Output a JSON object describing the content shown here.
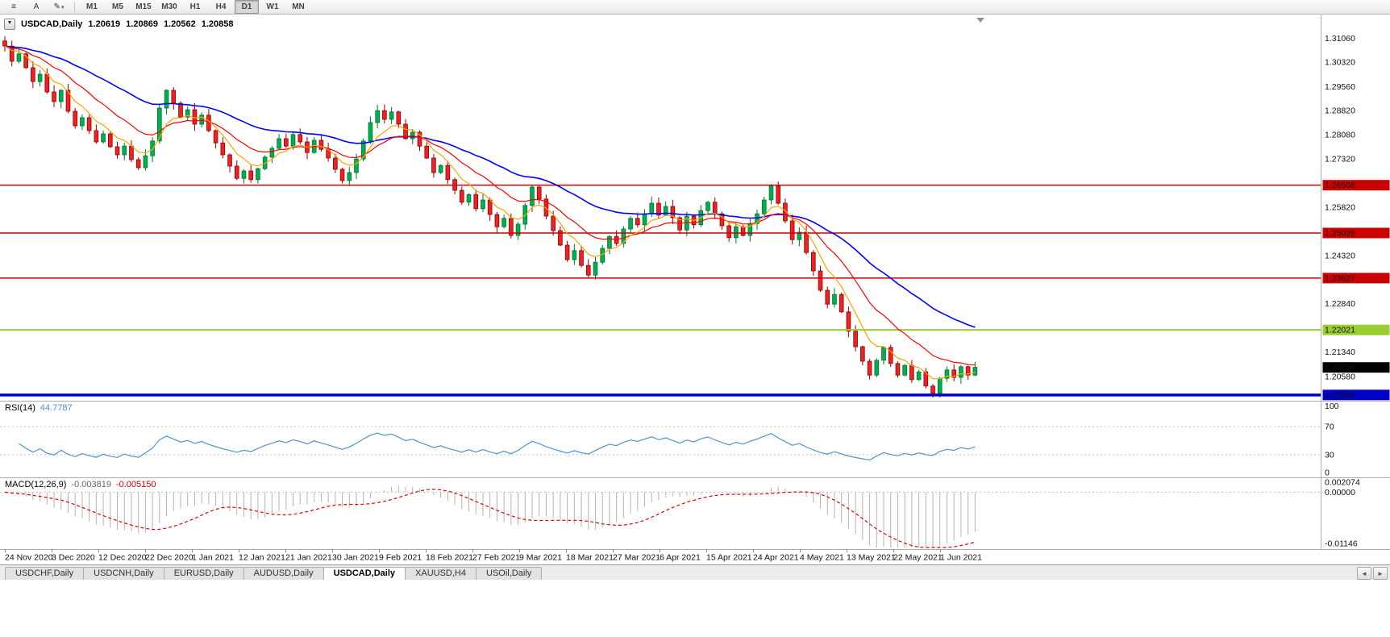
{
  "toolbar": {
    "icons": [
      {
        "name": "chart-window-icon",
        "glyph": "≡"
      },
      {
        "name": "text-annotation-icon",
        "glyph": "A"
      },
      {
        "name": "draw-tool-icon",
        "glyph": "✎"
      },
      {
        "name": "dropdown-caret-icon",
        "glyph": "▾"
      }
    ],
    "timeframes": [
      "M1",
      "M5",
      "M15",
      "M30",
      "H1",
      "H4",
      "D1",
      "W1",
      "MN"
    ],
    "active_timeframe": "D1"
  },
  "chart": {
    "symbol_label": "USDCAD,Daily",
    "open": "1.20619",
    "high": "1.20869",
    "low": "1.20562",
    "close": "1.20858",
    "oct_glyph": "▼",
    "colors": {
      "up": "#00b050",
      "up_border": "#00732f",
      "down": "#ee2222",
      "down_border": "#8f0000",
      "ma_fast": "#ffa500",
      "ma_mid": "#ff0000",
      "ma_slow": "#0000ff"
    }
  },
  "price_axis": {
    "ticks": [
      "1.31060",
      "1.30320",
      "1.29560",
      "1.28820",
      "1.28080",
      "1.27320",
      "1.25820",
      "1.24320",
      "1.22840",
      "1.21340",
      "1.20580"
    ],
    "current_price": {
      "value": "1.20858",
      "bg": "#000000",
      "fg": "#ffffff"
    }
  },
  "levels": [
    {
      "value": "1.26508",
      "color": "#cc0000",
      "text_color": "#ffffff",
      "width": 1.5
    },
    {
      "value": "1.25026",
      "color": "#cc0000",
      "text_color": "#ffffff",
      "width": 1.5
    },
    {
      "value": "1.23627",
      "color": "#cc0000",
      "text_color": "#ffffff",
      "width": 1.5
    },
    {
      "value": "1.22021",
      "color": "#9acd32",
      "text_color": "#000000",
      "width": 2
    },
    {
      "value": "1.20004",
      "color": "#0000c8",
      "text_color": "#ffffff",
      "width": 3.5
    }
  ],
  "rsi": {
    "label": "RSI(14)",
    "value": "44.7787",
    "line_color": "#4f94cd",
    "axis_labels": [
      "100",
      "70",
      "30",
      "0"
    ],
    "dashed_levels": [
      70,
      30
    ]
  },
  "macd": {
    "label": "MACD(12,26,9)",
    "value_main": "-0.003819",
    "value_signal": "-0.005150",
    "hist_color": "#b4b4b4",
    "signal_color": "#e00000",
    "axis_labels": [
      "0.002074",
      "0.00000",
      "-0.01146"
    ],
    "scale_top": 0.002074,
    "scale_bottom": -0.01146
  },
  "tabs": {
    "items": [
      "USDCHF,Daily",
      "USDCNH,Daily",
      "EURUSD,Daily",
      "AUDUSD,Daily",
      "USDCAD,Daily",
      "XAUUSD,H4",
      "USOil,Daily"
    ],
    "active": "USDCAD,Daily",
    "scroll_left_glyph": "◄",
    "scroll_right_glyph": "►"
  },
  "chart_data": {
    "type": "candlestick",
    "symbol": "USDCAD",
    "timeframe": "Daily",
    "ylim": [
      1.19875,
      1.317
    ],
    "first_open": 1.3098,
    "closes": [
      1.3082,
      1.3035,
      1.3058,
      1.3015,
      1.2972,
      1.2995,
      1.294,
      1.291,
      1.2945,
      1.288,
      1.2835,
      1.286,
      1.282,
      1.2785,
      1.281,
      1.277,
      1.2745,
      1.2772,
      1.273,
      1.2705,
      1.2742,
      1.2788,
      1.289,
      1.2945,
      1.2905,
      1.2862,
      1.2885,
      1.284,
      1.2868,
      1.282,
      1.2782,
      1.2745,
      1.271,
      1.2672,
      1.2695,
      1.2668,
      1.2702,
      1.2738,
      1.2765,
      1.2795,
      1.2772,
      1.2808,
      1.2785,
      1.2752,
      1.279,
      1.2762,
      1.2735,
      1.27,
      1.2665,
      1.269,
      1.2732,
      1.2788,
      1.2845,
      1.2882,
      1.2855,
      1.2878,
      1.284,
      1.2795,
      1.2815,
      1.2772,
      1.2735,
      1.269,
      1.2712,
      1.2668,
      1.2635,
      1.2598,
      1.2622,
      1.2578,
      1.2605,
      1.256,
      1.2522,
      1.2548,
      1.2495,
      1.253,
      1.2588,
      1.2645,
      1.2608,
      1.2555,
      1.251,
      1.2465,
      1.242,
      1.2448,
      1.2402,
      1.2372,
      1.2412,
      1.2455,
      1.2492,
      1.247,
      1.2515,
      1.2548,
      1.2528,
      1.2562,
      1.2595,
      1.2558,
      1.2585,
      1.255,
      1.2512,
      1.2555,
      1.2528,
      1.2572,
      1.2598,
      1.2562,
      1.2525,
      1.2488,
      1.2522,
      1.2495,
      1.2532,
      1.2562,
      1.2605,
      1.2648,
      1.2595,
      1.254,
      1.2482,
      1.2505,
      1.2442,
      1.2385,
      1.2325,
      1.2282,
      1.2312,
      1.2258,
      1.2198,
      1.215,
      1.2105,
      1.2062,
      1.2108,
      1.2148,
      1.2098,
      1.2062,
      1.2092,
      1.2048,
      1.2072,
      1.2028,
      1.2005,
      1.2052,
      1.2078,
      1.2055,
      1.2088,
      1.2062,
      1.2086
    ],
    "dates": [
      "24 Nov 2020",
      "3 Dec 2020",
      "12 Dec 2020",
      "22 Dec 2020",
      "1 Jan 2021",
      "12 Jan 2021",
      "21 Jan 2021",
      "30 Jan 2021",
      "9 Feb 2021",
      "18 Feb 2021",
      "27 Feb 2021",
      "9 Mar 2021",
      "18 Mar 2021",
      "27 Mar 2021",
      "6 Apr 2021",
      "15 Apr 2021",
      "24 Apr 2021",
      "4 May 2021",
      "13 May 2021",
      "22 May 2021",
      "1 Jun 2021"
    ],
    "indicators": [
      {
        "name": "EMA",
        "periods": [
          6,
          14,
          34
        ]
      },
      {
        "name": "RSI",
        "period": 14,
        "last": 44.7787
      },
      {
        "name": "MACD",
        "params": [
          12,
          26,
          9
        ],
        "last": [
          -0.003819,
          -0.00515
        ]
      }
    ]
  }
}
